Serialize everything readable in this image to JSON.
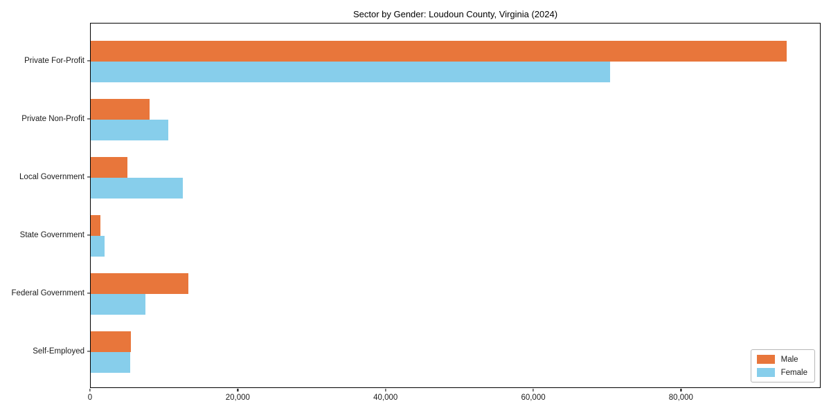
{
  "chart_data": {
    "type": "bar",
    "orientation": "horizontal",
    "title": "Sector by Gender: Loudoun County, Virginia (2024)",
    "categories": [
      "Private For-Profit",
      "Private Non-Profit",
      "Local Government",
      "State Government",
      "Federal Government",
      "Self-Employed"
    ],
    "series": [
      {
        "name": "Male",
        "color": "#E8763B",
        "values": [
          94200,
          8000,
          5000,
          1300,
          13200,
          5400
        ]
      },
      {
        "name": "Female",
        "color": "#87CEEB",
        "values": [
          70300,
          10500,
          12500,
          1900,
          7400,
          5300
        ]
      }
    ],
    "xlabel": "",
    "ylabel": "",
    "xlim": [
      0,
      98900
    ],
    "x_ticks": [
      0,
      20000,
      40000,
      60000,
      80000
    ],
    "x_tick_labels": [
      "0",
      "20,000",
      "40,000",
      "60,000",
      "80,000"
    ],
    "legend": {
      "position": "lower right",
      "entries": [
        "Male",
        "Female"
      ]
    },
    "grid": false
  }
}
